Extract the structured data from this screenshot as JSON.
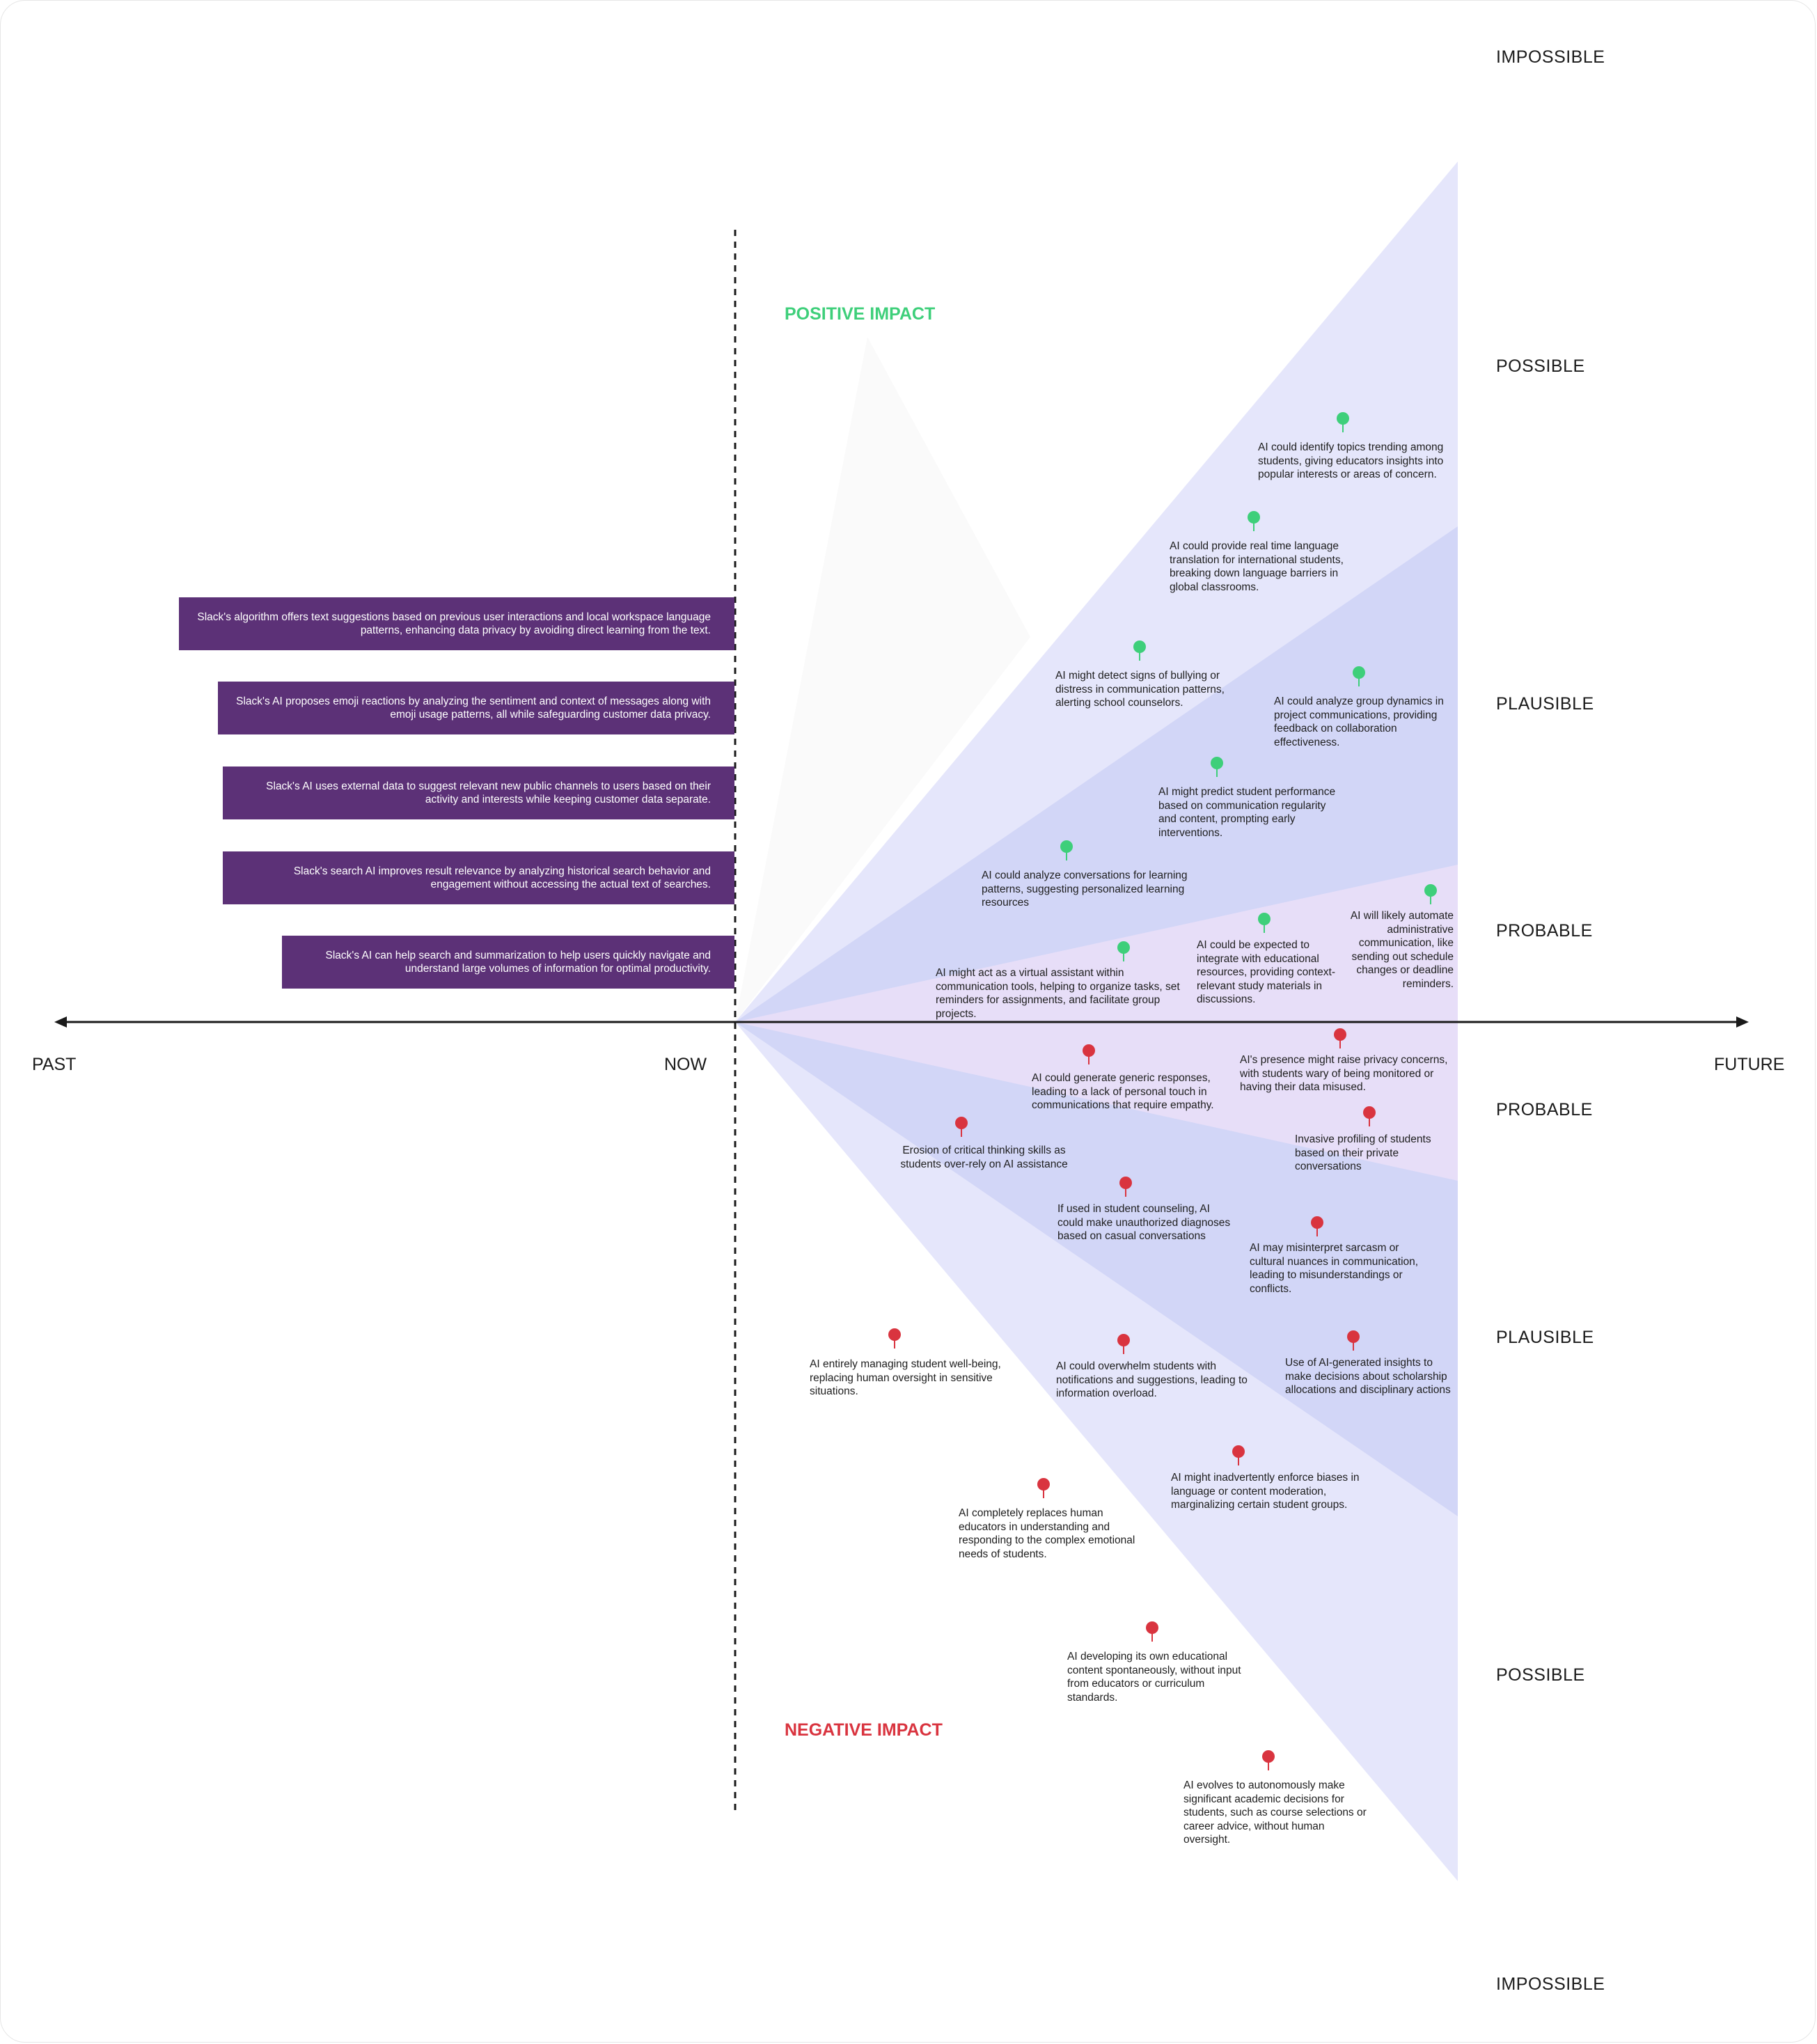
{
  "diagram": {
    "levels_top": {
      "impossible": "IMPOSSIBLE",
      "possible": "POSSIBLE",
      "plausible": "PLAUSIBLE",
      "probable": "PROBABLE"
    },
    "levels_bottom": {
      "probable": "PROBABLE",
      "plausible": "PLAUSIBLE",
      "possible": "POSSIBLE",
      "impossible": "IMPOSSIBLE"
    },
    "axis": {
      "past": "PAST",
      "now": "NOW",
      "future": "FUTURE"
    },
    "positive_impact": "POSITIVE IMPACT",
    "negative_impact": "NEGATIVE IMPACT",
    "colors": {
      "purple_box": "#5c3177",
      "positive": "#3ecf7a",
      "negative": "#d9343f",
      "possible_band": "#e5e6fb",
      "plausible_band": "#d2d6f7",
      "probable_band": "#e7def8"
    },
    "past_items": [
      "Slack's algorithm offers text suggestions based on previous user interactions and local workspace language patterns, enhancing data privacy by avoiding direct learning from the text.",
      "Slack's AI proposes emoji reactions by analyzing the sentiment and context of messages along with emoji usage patterns, all while safeguarding customer data privacy.",
      "Slack's AI uses external data to suggest relevant new public channels to users based on their activity and interests while keeping customer data separate.",
      "Slack's search AI improves result relevance by analyzing historical search behavior and engagement without accessing the actual text of searches.",
      "Slack's AI can help search and summarization to help users quickly navigate and understand large volumes of information for optimal productivity."
    ],
    "positive_items": [
      "AI could identify topics trending among students, giving educators insights into popular interests or areas of concern.",
      "AI could provide real time language translation for international students, breaking down language barriers in global classrooms.",
      "AI might detect signs of bullying or distress in communication patterns, alerting school counselors.",
      "AI could analyze group dynamics in project communications, providing feedback on collaboration effectiveness.",
      "AI might predict student performance based on communication regularity and content, prompting early interventions.",
      "AI could analyze conversations for learning patterns, suggesting personalized learning resources",
      "AI will likely automate administrative communication, like sending out schedule changes or deadline reminders.",
      "AI could be expected to integrate with educational resources, providing context-relevant study materials in discussions.",
      "AI might act as a virtual assistant within communication tools, helping to organize tasks, set reminders for assignments, and facilitate group projects."
    ],
    "negative_items": [
      "AI could generate generic responses, leading to a lack of personal touch in communications that require empathy.",
      "AI's presence might raise privacy concerns, with students wary of being monitored or having their data misused.",
      "Invasive profiling of students based on their private conversations",
      "Erosion of critical thinking skills as students over-rely on AI assistance",
      "If used in student counseling, AI could make unauthorized diagnoses based on casual conversations",
      "AI may misinterpret sarcasm or cultural nuances in communication, leading to misunderstandings or conflicts.",
      "AI entirely managing student well-being, replacing human oversight in sensitive situations.",
      "AI could overwhelm students with notifications and suggestions, leading to information overload.",
      "Use of AI-generated insights to make decisions about scholarship allocations and disciplinary actions",
      "AI might inadvertently enforce biases in language or content moderation, marginalizing certain student groups.",
      "AI completely replaces human educators in understanding and responding to the complex emotional needs of students.",
      "AI developing its own educational content spontaneously, without input from educators or curriculum standards.",
      "AI evolves to autonomously make significant academic decisions for students, such as course selections or career advice, without human oversight."
    ]
  }
}
